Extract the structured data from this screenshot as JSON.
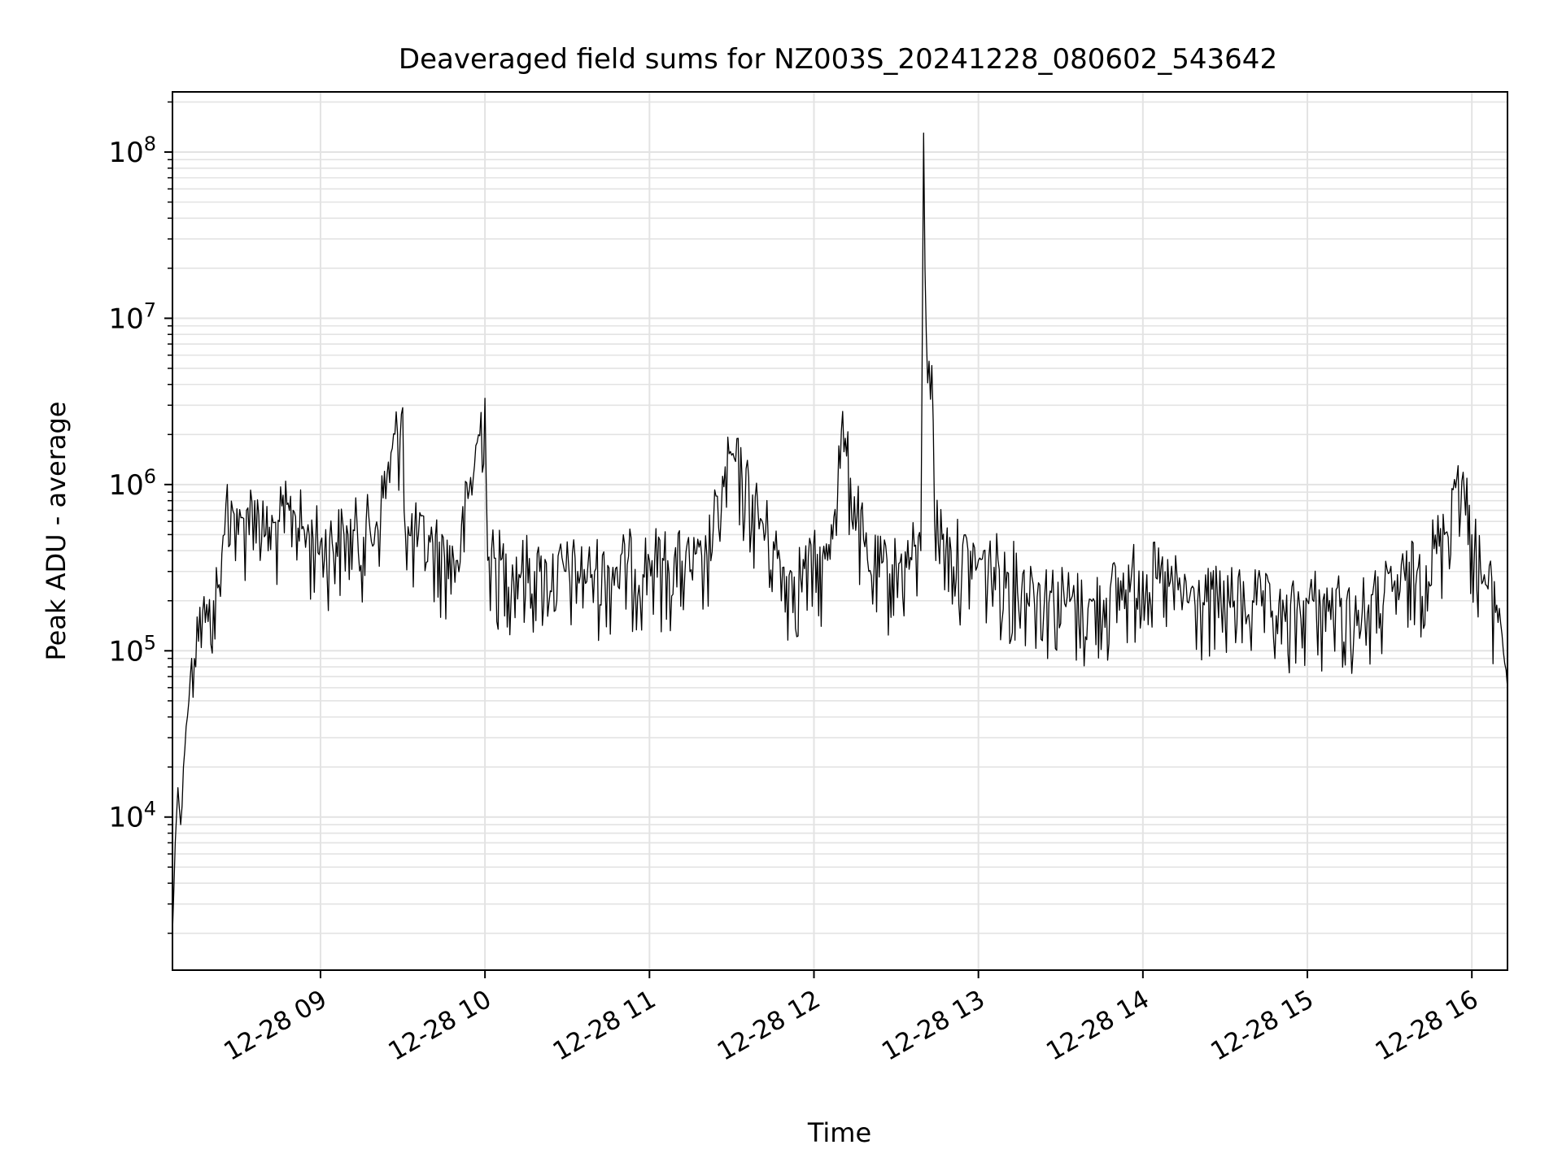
{
  "chart_data": {
    "type": "line",
    "title": "Deaveraged field sums for NZ003S_20241228_080602_543642",
    "xlabel": "Time",
    "ylabel": "Peak ADU - average",
    "y_scale": "log",
    "grid": true,
    "legend": "none",
    "xlim": [
      "2024-12-28 08:06",
      "2024-12-28 16:13"
    ],
    "ylim": [
      1200,
      230000000
    ],
    "x_ticks": [
      "2024-12-28 09:00",
      "2024-12-28 10:00",
      "2024-12-28 11:00",
      "2024-12-28 12:00",
      "2024-12-28 13:00",
      "2024-12-28 14:00",
      "2024-12-28 15:00",
      "2024-12-28 16:00"
    ],
    "x_tick_labels": [
      "12-28 09",
      "12-28 10",
      "12-28 11",
      "12-28 12",
      "12-28 13",
      "12-28 14",
      "12-28 15",
      "12-28 16"
    ],
    "y_ticks": [
      10000,
      100000,
      1000000,
      10000000,
      100000000
    ],
    "y_tick_labels": [
      {
        "base": "10",
        "exp": "4"
      },
      {
        "base": "10",
        "exp": "5"
      },
      {
        "base": "10",
        "exp": "6"
      },
      {
        "base": "10",
        "exp": "7"
      },
      {
        "base": "10",
        "exp": "8"
      }
    ],
    "series": [
      {
        "color": "#000000",
        "x": [
          "2024-12-28 08:06",
          "2024-12-28 08:07",
          "2024-12-28 08:08",
          "2024-12-28 08:09",
          "2024-12-28 08:10",
          "2024-12-28 08:11",
          "2024-12-28 08:12",
          "2024-12-28 08:13",
          "2024-12-28 08:15",
          "2024-12-28 08:17",
          "2024-12-28 08:19",
          "2024-12-28 08:21",
          "2024-12-28 08:23",
          "2024-12-28 08:25",
          "2024-12-28 08:26",
          "2024-12-28 08:28",
          "2024-12-28 08:30",
          "2024-12-28 08:33",
          "2024-12-28 08:36",
          "2024-12-28 08:40",
          "2024-12-28 08:45",
          "2024-12-28 08:50",
          "2024-12-28 08:55",
          "2024-12-28 09:00",
          "2024-12-28 09:10",
          "2024-12-28 09:20",
          "2024-12-28 09:30",
          "2024-12-28 09:31",
          "2024-12-28 09:40",
          "2024-12-28 09:50",
          "2024-12-28 10:00",
          "2024-12-28 10:01",
          "2024-12-28 10:20",
          "2024-12-28 10:40",
          "2024-12-28 11:00",
          "2024-12-28 11:20",
          "2024-12-28 11:30",
          "2024-12-28 11:50",
          "2024-12-28 12:05",
          "2024-12-28 12:10",
          "2024-12-28 12:20",
          "2024-12-28 12:30",
          "2024-12-28 12:39",
          "2024-12-28 12:40",
          "2024-12-28 12:41",
          "2024-12-28 12:43",
          "2024-12-28 12:44",
          "2024-12-28 12:50",
          "2024-12-28 13:00",
          "2024-12-28 13:20",
          "2024-12-28 13:40",
          "2024-12-28 14:00",
          "2024-12-28 14:20",
          "2024-12-28 14:40",
          "2024-12-28 14:52",
          "2024-12-28 15:00",
          "2024-12-28 15:20",
          "2024-12-28 15:40",
          "2024-12-28 15:50",
          "2024-12-28 15:55",
          "2024-12-28 16:00",
          "2024-12-28 16:05",
          "2024-12-28 16:10",
          "2024-12-28 16:13"
        ],
        "y": [
          2000,
          7000,
          15000,
          9000,
          20000,
          35000,
          50000,
          90000,
          160000,
          170000,
          150000,
          200000,
          250000,
          500000,
          1000000,
          700000,
          500000,
          700000,
          800000,
          500000,
          600000,
          700000,
          500000,
          450000,
          500000,
          550000,
          2900000,
          500000,
          450000,
          350000,
          3300000,
          350000,
          300000,
          300000,
          350000,
          320000,
          1500000,
          280000,
          350000,
          2100000,
          300000,
          320000,
          400000,
          130000000,
          8000000,
          5200000,
          600000,
          400000,
          350000,
          250000,
          180000,
          300000,
          200000,
          200000,
          150000,
          200000,
          170000,
          300000,
          500000,
          1300000,
          500000,
          250000,
          180000,
          60000
        ]
      }
    ]
  }
}
